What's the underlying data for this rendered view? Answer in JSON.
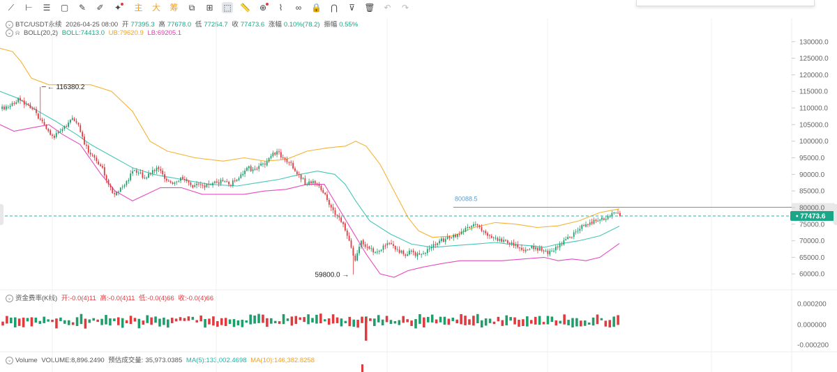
{
  "toolbar": {
    "tools": [
      {
        "name": "trend-line-icon",
        "glyph": "⟋"
      },
      {
        "name": "horizontal-segment-icon",
        "glyph": "⊢"
      },
      {
        "name": "parallel-lines-icon",
        "glyph": "☰"
      },
      {
        "name": "rectangle-icon",
        "glyph": "▢"
      },
      {
        "name": "brush-icon",
        "glyph": "✎"
      },
      {
        "name": "pen-icon",
        "glyph": "✐"
      },
      {
        "name": "magic-brush-icon",
        "glyph": "✦"
      }
    ],
    "text_tools": [
      "主",
      "大",
      "筹"
    ],
    "tools2": [
      {
        "name": "crop-icon",
        "glyph": "⧉"
      },
      {
        "name": "grid-icon",
        "glyph": "⊞"
      },
      {
        "name": "cursor-select-icon",
        "glyph": "⬚",
        "active": true
      },
      {
        "name": "ruler-icon",
        "glyph": "📏"
      },
      {
        "name": "zoom-icon",
        "glyph": "⊕"
      },
      {
        "name": "highlighter-icon",
        "glyph": "⌇"
      },
      {
        "name": "link-icon",
        "glyph": "∞"
      },
      {
        "name": "lock-icon",
        "glyph": "🔒"
      },
      {
        "name": "magnet-icon",
        "glyph": "⋂"
      },
      {
        "name": "filter-icon",
        "glyph": "⊽"
      },
      {
        "name": "trash-icon",
        "glyph": "🗑"
      },
      {
        "name": "undo-icon",
        "glyph": "↶",
        "dim": true
      },
      {
        "name": "redo-icon",
        "glyph": "↷",
        "dim": true
      }
    ]
  },
  "legend_main": {
    "symbol": "BTC/USDT永续",
    "datetime": "2026-04-25 08:00",
    "open_label": "开",
    "open": "77395.3",
    "high_label": "高",
    "high": "77678.0",
    "low_label": "低",
    "low": "77254.7",
    "close_label": "收",
    "close": "77473.6",
    "change_label": "涨幅",
    "change": "0.10%(78.2)",
    "amp_label": "振幅",
    "amp": "0.55%"
  },
  "legend_boll": {
    "name": "BOLL(20,2)",
    "boll": "BOLL:74413.0",
    "ub": "UB:79620.9",
    "lb": "LB:69205.1"
  },
  "legend_funding": {
    "name": "资金费率(K线)",
    "open": "开:-0.0(4)11",
    "high": "高:-0.0(4)11",
    "low": "低:-0.0(4)66",
    "close": "收:-0.0(4)66"
  },
  "legend_volume": {
    "name": "Volume",
    "volume": "VOLUME:8,896.2490",
    "est_label": "预估成交量:",
    "est": "35,973.0385",
    "ma5": "MA(5):133,002.4698",
    "ma10": "MA(10):146,382.8258"
  },
  "colors": {
    "up": "#1e9e6a",
    "down": "#e0393e",
    "boll": "#45c6b8",
    "ub": "#f5b335",
    "lb": "#e64ac0",
    "price_line": "#3aa8c8"
  },
  "chart_data": {
    "type": "candlestick",
    "y_ticks": [
      "130000.0",
      "125000.0",
      "120000.0",
      "115000.0",
      "110000.0",
      "105000.0",
      "100000.0",
      "95000.0",
      "90000.0",
      "85000.0",
      "80000.0",
      "75000.0",
      "70000.0",
      "65000.0",
      "60000.0"
    ],
    "ylim": [
      57000,
      133000
    ],
    "annotations": {
      "high_label": "116380.2",
      "low_label": "59800.0",
      "level_line": "80088.5",
      "last_price": "77473.6"
    },
    "levels": {
      "high": 116380.2,
      "low": 59800.0,
      "line": 80088.5,
      "last": 77473.6
    },
    "funding_ticks": [
      "0.000200",
      "0.000000",
      "-0.000200"
    ],
    "close_path": [
      110500,
      111500,
      113000,
      111000,
      110000,
      108500,
      106000,
      103000,
      101000,
      103000,
      104500,
      107000,
      105000,
      99000,
      96000,
      94000,
      92000,
      87000,
      84000,
      86000,
      88000,
      91000,
      90500,
      89000,
      90000,
      92000,
      90000,
      88000,
      87500,
      89000,
      88000,
      86000,
      87000,
      86000,
      87000,
      87500,
      88000,
      87000,
      88000,
      90000,
      92000,
      91500,
      92500,
      93000,
      95500,
      97000,
      95000,
      93500,
      91000,
      88500,
      87000,
      88000,
      86500,
      84000,
      80000,
      77500,
      75000,
      70000,
      64000,
      70000,
      68000,
      66500,
      67000,
      68500,
      69000,
      67500,
      66000,
      67000,
      65500,
      66000,
      67500,
      69000,
      70000,
      70500,
      71000,
      72000,
      73000,
      74000,
      75000,
      73000,
      71500,
      71000,
      70500,
      70000,
      69500,
      68000,
      67000,
      67500,
      68000,
      67000,
      66000,
      67000,
      69000,
      70500,
      71000,
      73000,
      74500,
      75500,
      76000,
      77000,
      77500,
      78500,
      77473.6
    ],
    "boll_mid": [
      [
        0,
        115000
      ],
      [
        25,
        113000
      ],
      [
        55,
        109000
      ],
      [
        80,
        106000
      ],
      [
        110,
        102000
      ],
      [
        130,
        99000
      ],
      [
        160,
        95500
      ],
      [
        190,
        92000
      ],
      [
        220,
        90000
      ],
      [
        260,
        88500
      ],
      [
        300,
        87000
      ],
      [
        340,
        86500
      ],
      [
        370,
        87500
      ],
      [
        400,
        88500
      ],
      [
        430,
        90000
      ],
      [
        455,
        91000
      ],
      [
        480,
        90000
      ],
      [
        495,
        87000
      ],
      [
        510,
        82000
      ],
      [
        530,
        76000
      ],
      [
        560,
        72000
      ],
      [
        590,
        69000
      ],
      [
        620,
        68000
      ],
      [
        650,
        68500
      ],
      [
        680,
        69000
      ],
      [
        710,
        69500
      ],
      [
        730,
        69000
      ],
      [
        760,
        68500
      ],
      [
        780,
        68000
      ],
      [
        800,
        69000
      ],
      [
        830,
        70000
      ],
      [
        860,
        71500
      ],
      [
        888,
        74413
      ]
    ],
    "boll_up": [
      [
        0,
        128000
      ],
      [
        18,
        127000
      ],
      [
        30,
        124000
      ],
      [
        45,
        119000
      ],
      [
        70,
        117000
      ],
      [
        100,
        117000
      ],
      [
        130,
        117000
      ],
      [
        160,
        115000
      ],
      [
        190,
        109000
      ],
      [
        215,
        100000
      ],
      [
        240,
        97000
      ],
      [
        280,
        95000
      ],
      [
        320,
        94000
      ],
      [
        350,
        95000
      ],
      [
        380,
        94000
      ],
      [
        410,
        94500
      ],
      [
        440,
        97000
      ],
      [
        470,
        98000
      ],
      [
        495,
        98500
      ],
      [
        510,
        100000
      ],
      [
        525,
        98500
      ],
      [
        545,
        93000
      ],
      [
        565,
        85000
      ],
      [
        585,
        77000
      ],
      [
        600,
        73000
      ],
      [
        620,
        71000
      ],
      [
        650,
        71500
      ],
      [
        680,
        74000
      ],
      [
        710,
        75500
      ],
      [
        740,
        75000
      ],
      [
        770,
        74000
      ],
      [
        800,
        74500
      ],
      [
        830,
        76000
      ],
      [
        860,
        78500
      ],
      [
        888,
        79620.9
      ]
    ],
    "boll_dn": [
      [
        0,
        105000
      ],
      [
        20,
        103000
      ],
      [
        45,
        104000
      ],
      [
        70,
        105000
      ],
      [
        90,
        102000
      ],
      [
        115,
        99000
      ],
      [
        145,
        90000
      ],
      [
        165,
        85000
      ],
      [
        190,
        82000
      ],
      [
        210,
        84000
      ],
      [
        230,
        86000
      ],
      [
        260,
        86000
      ],
      [
        290,
        84000
      ],
      [
        320,
        84000
      ],
      [
        350,
        84000
      ],
      [
        380,
        85000
      ],
      [
        410,
        85500
      ],
      [
        440,
        87000
      ],
      [
        465,
        87000
      ],
      [
        485,
        80000
      ],
      [
        505,
        73000
      ],
      [
        525,
        66000
      ],
      [
        545,
        60000
      ],
      [
        565,
        59000
      ],
      [
        585,
        61000
      ],
      [
        605,
        62000
      ],
      [
        630,
        63000
      ],
      [
        660,
        64000
      ],
      [
        690,
        64000
      ],
      [
        720,
        64000
      ],
      [
        750,
        64500
      ],
      [
        780,
        65000
      ],
      [
        800,
        64000
      ],
      [
        820,
        64500
      ],
      [
        840,
        64000
      ],
      [
        860,
        65000
      ],
      [
        888,
        69205.1
      ]
    ]
  }
}
